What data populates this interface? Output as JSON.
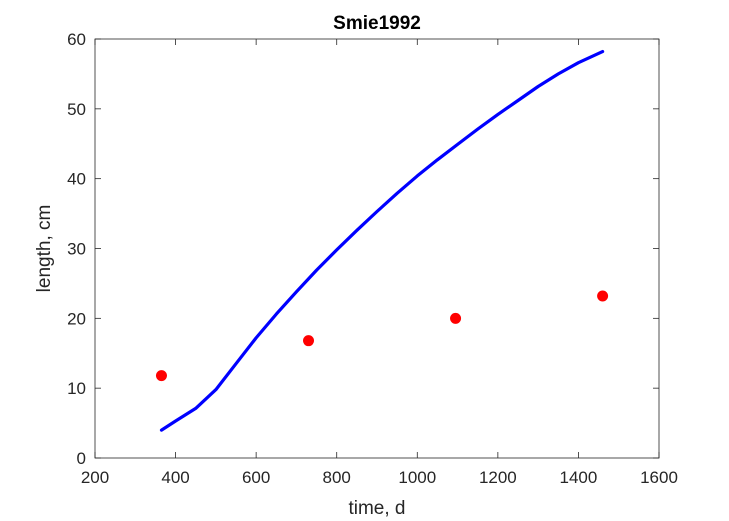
{
  "chart_data": {
    "type": "line",
    "title": "Smie1992",
    "xlabel": "time, d",
    "ylabel": "length, cm",
    "xlim": [
      200,
      1600
    ],
    "ylim": [
      0,
      60
    ],
    "xticks": [
      200,
      400,
      600,
      800,
      1000,
      1200,
      1400,
      1600
    ],
    "yticks": [
      0,
      10,
      20,
      30,
      40,
      50,
      60
    ],
    "grid": false,
    "legend": "none",
    "box": true,
    "series": [
      {
        "kind": "line",
        "color": "#0000ff",
        "x": [
          365,
          400,
          450,
          500,
          550,
          600,
          650,
          700,
          750,
          800,
          850,
          900,
          950,
          1000,
          1050,
          1100,
          1150,
          1200,
          1250,
          1300,
          1350,
          1400,
          1460
        ],
        "y": [
          4.0,
          5.3,
          7.1,
          9.8,
          13.5,
          17.2,
          20.6,
          23.8,
          26.9,
          29.8,
          32.6,
          35.3,
          37.9,
          40.4,
          42.7,
          44.9,
          47.1,
          49.2,
          51.2,
          53.2,
          55.0,
          56.6,
          58.2
        ]
      },
      {
        "kind": "scatter",
        "color": "#ff0000",
        "x": [
          365,
          730,
          1095,
          1460
        ],
        "y": [
          11.8,
          16.8,
          20.0,
          23.2
        ]
      }
    ]
  }
}
